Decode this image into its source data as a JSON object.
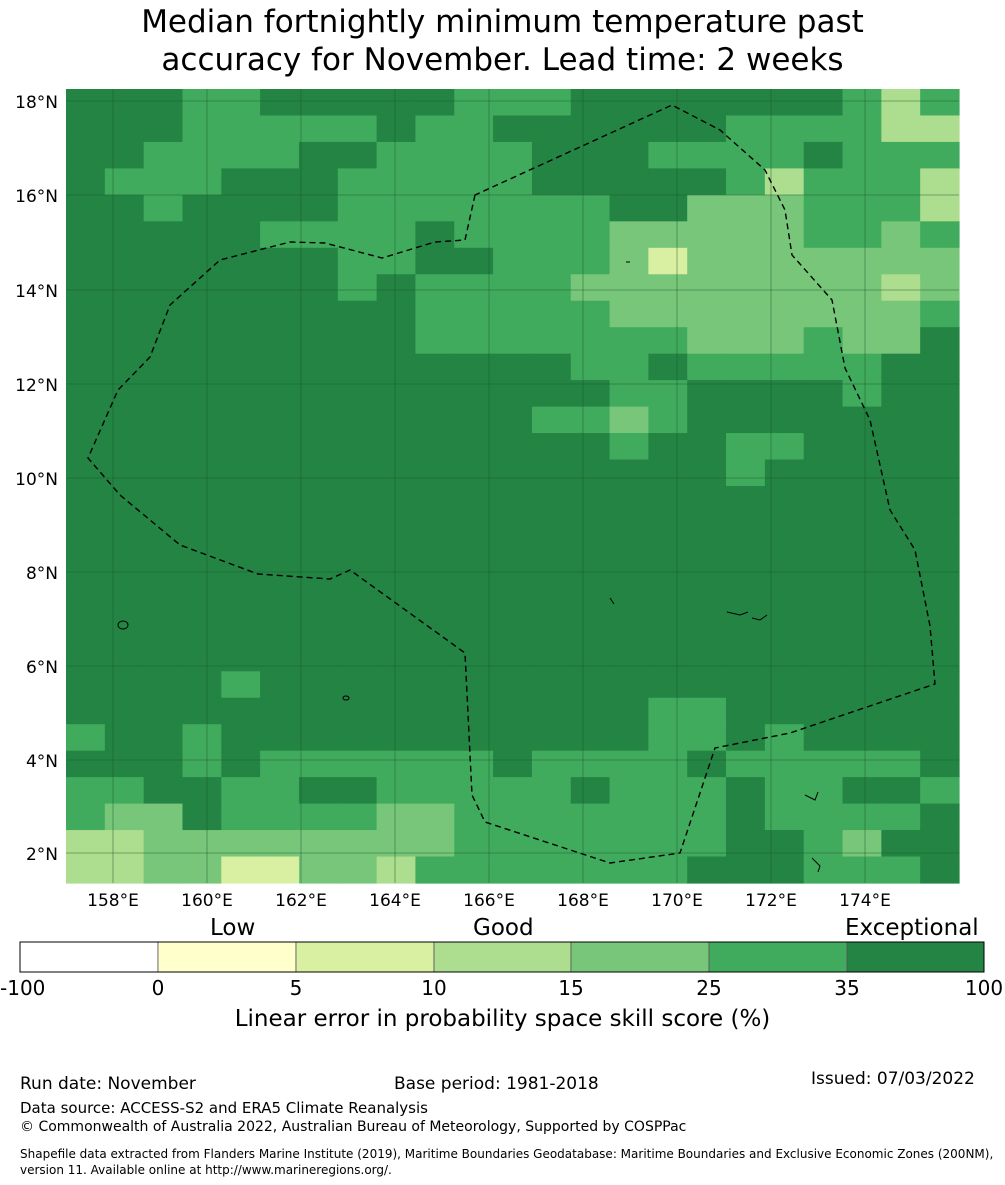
{
  "title_line1": "Median fortnightly minimum temperature past",
  "title_line2": "accuracy for November. Lead time: 2 weeks",
  "map": {
    "lat_labels": [
      "18°N",
      "16°N",
      "14°N",
      "12°N",
      "10°N",
      "8°N",
      "6°N",
      "4°N",
      "2°N"
    ],
    "lon_labels": [
      "158°E",
      "160°E",
      "162°E",
      "164°E",
      "166°E",
      "168°E",
      "170°E",
      "172°E",
      "174°E"
    ],
    "colors": {
      "c35": "#238443",
      "c25": "#41ab5d",
      "c15": "#78c679",
      "c10": "#addd8e",
      "c5": "#d9f0a3",
      "c0": "#ffffcc",
      "cneg": "#ffffff"
    },
    "boundary_style": "dashed black"
  },
  "colorbar": {
    "headings": {
      "low": "Low",
      "good": "Good",
      "exceptional": "Exceptional"
    },
    "ticks": [
      "-100",
      "0",
      "5",
      "10",
      "15",
      "25",
      "35",
      "100"
    ],
    "label": "Linear error in probability space skill score (%)"
  },
  "footer": {
    "run_date": "Run date: November",
    "base_period": "Base period: 1981-2018",
    "issued": "Issued: 07/03/2022",
    "data_source": "Data source: ACCESS-S2 and ERA5 Climate Reanalysis",
    "copyright": "© Commonwealth of Australia 2022, Australian Bureau of Meteorology, Supported by COSPPac",
    "shapefile_line1": "Shapefile data extracted from Flanders Marine Institute (2019), Maritime Boundaries Geodatabase: Maritime Boundaries and Exclusive Economic Zones (200NM),",
    "shapefile_line2": "version 11. Available online at http://www.marineregions.org/."
  }
}
